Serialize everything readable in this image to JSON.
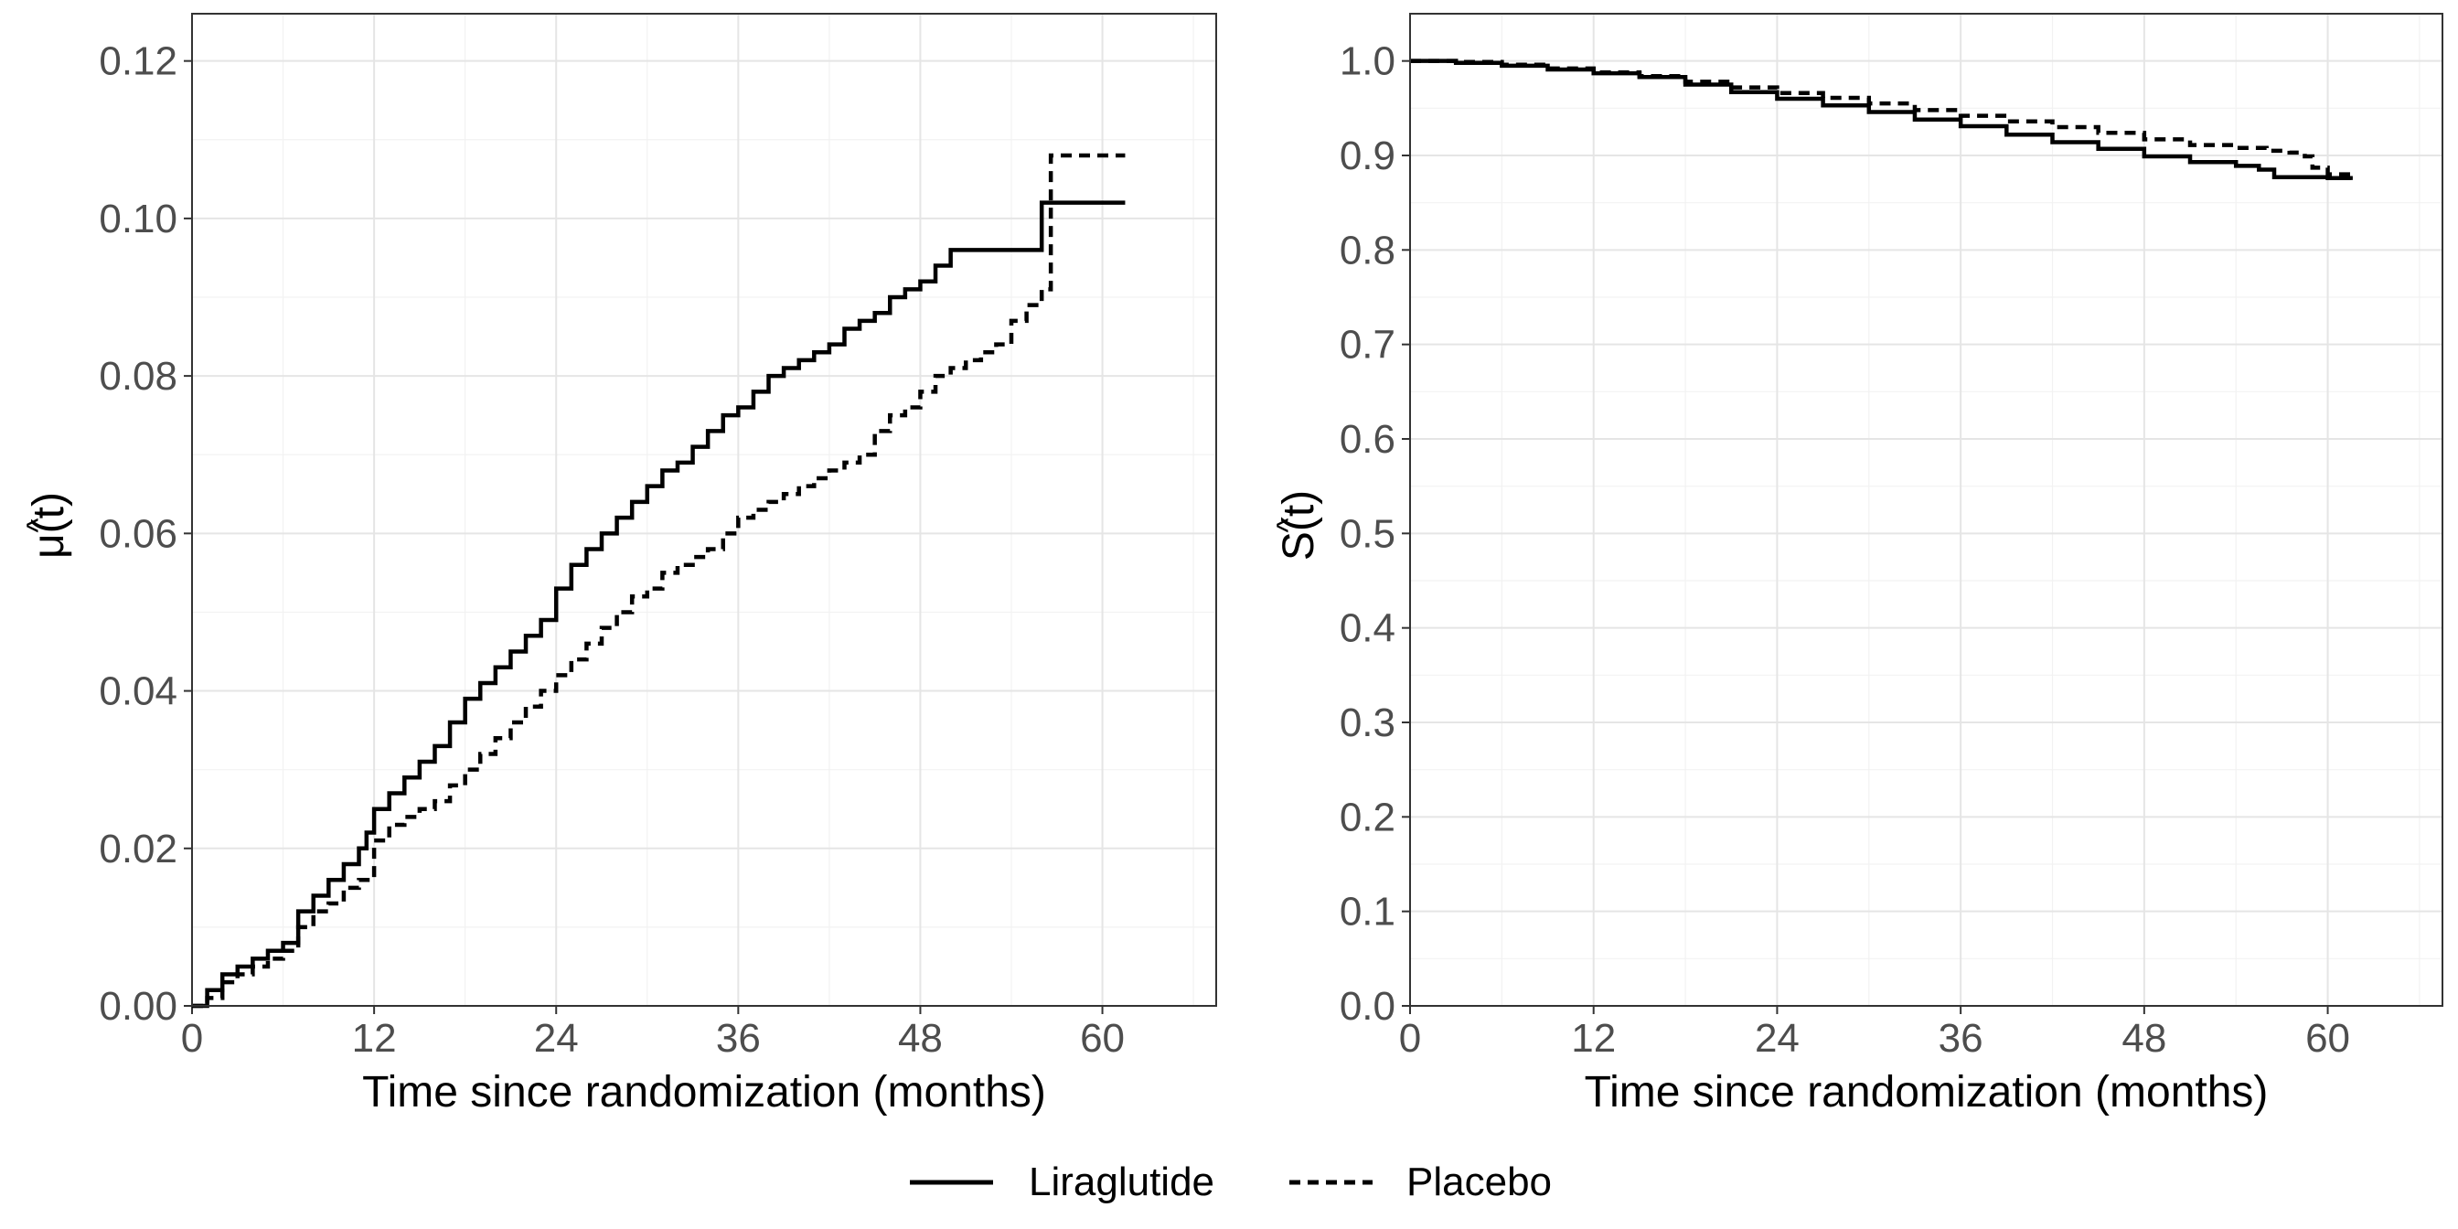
{
  "legend": {
    "position": "bottom",
    "items": [
      {
        "label": "Liraglutide",
        "linetype": "solid"
      },
      {
        "label": "Placebo",
        "linetype": "dashed"
      }
    ]
  },
  "chart_data": [
    {
      "type": "line",
      "step": true,
      "ylabel_main": "μ(t)",
      "ylabel_hat": "^",
      "xlabel": "Time since randomization (months)",
      "xlim": [
        0,
        67.5
      ],
      "ylim": [
        0,
        0.126
      ],
      "xticks": [
        0,
        12,
        24,
        36,
        48,
        60
      ],
      "xtick_labels": [
        "0",
        "12",
        "24",
        "36",
        "48",
        "60"
      ],
      "yticks": [
        0,
        0.02,
        0.04,
        0.06,
        0.08,
        0.1,
        0.12
      ],
      "ytick_labels": [
        "0.00",
        "0.02",
        "0.04",
        "0.06",
        "0.08",
        "0.10",
        "0.12"
      ],
      "grid": true,
      "series": [
        {
          "name": "Liraglutide",
          "linetype": "solid",
          "x": [
            0,
            1,
            2,
            3,
            4,
            5,
            6,
            7,
            8,
            9,
            10,
            11,
            11.5,
            12,
            13,
            14,
            15,
            16,
            17,
            18,
            19,
            20,
            21,
            22,
            23,
            24,
            25,
            26,
            27,
            28,
            29,
            30,
            31,
            32,
            33,
            34,
            35,
            36,
            37,
            38,
            39,
            40,
            41,
            42,
            43,
            44,
            45,
            46,
            47,
            48,
            49,
            50,
            51,
            52,
            53,
            54,
            55,
            56,
            57,
            58,
            59,
            60,
            61.5
          ],
          "y": [
            0,
            0.002,
            0.004,
            0.005,
            0.006,
            0.007,
            0.008,
            0.012,
            0.014,
            0.016,
            0.018,
            0.02,
            0.022,
            0.025,
            0.027,
            0.029,
            0.031,
            0.033,
            0.036,
            0.039,
            0.041,
            0.043,
            0.045,
            0.047,
            0.049,
            0.053,
            0.056,
            0.058,
            0.06,
            0.062,
            0.064,
            0.066,
            0.068,
            0.069,
            0.071,
            0.073,
            0.075,
            0.076,
            0.078,
            0.08,
            0.081,
            0.082,
            0.083,
            0.084,
            0.086,
            0.087,
            0.088,
            0.09,
            0.091,
            0.092,
            0.094,
            0.096,
            0.096,
            0.096,
            0.096,
            0.096,
            0.096,
            0.102,
            0.102,
            0.102,
            0.102,
            0.102,
            0.102
          ]
        },
        {
          "name": "Placebo",
          "linetype": "dashed",
          "x": [
            0,
            1,
            2,
            3,
            4,
            5,
            6,
            7,
            8,
            9,
            10,
            11,
            12,
            13,
            14,
            15,
            16,
            17,
            18,
            19,
            20,
            21,
            22,
            23,
            24,
            25,
            26,
            27,
            28,
            29,
            30,
            31,
            32,
            33,
            34,
            35,
            36,
            37,
            38,
            39,
            40,
            41,
            42,
            43,
            44,
            45,
            46,
            47,
            48,
            49,
            50,
            51,
            52,
            53,
            54,
            55,
            56,
            56.6,
            58,
            60,
            61.5
          ],
          "y": [
            0,
            0.001,
            0.003,
            0.004,
            0.005,
            0.006,
            0.007,
            0.01,
            0.012,
            0.013,
            0.015,
            0.016,
            0.021,
            0.023,
            0.024,
            0.025,
            0.026,
            0.028,
            0.03,
            0.032,
            0.034,
            0.036,
            0.038,
            0.04,
            0.042,
            0.044,
            0.046,
            0.048,
            0.05,
            0.052,
            0.053,
            0.055,
            0.056,
            0.057,
            0.058,
            0.06,
            0.062,
            0.063,
            0.064,
            0.065,
            0.066,
            0.067,
            0.068,
            0.069,
            0.07,
            0.073,
            0.075,
            0.076,
            0.078,
            0.08,
            0.081,
            0.082,
            0.083,
            0.084,
            0.087,
            0.089,
            0.091,
            0.108,
            0.108,
            0.108,
            0.108
          ]
        }
      ]
    },
    {
      "type": "line",
      "step": true,
      "ylabel_main": "S(t)",
      "ylabel_hat": "^",
      "xlabel": "Time since randomization (months)",
      "xlim": [
        0,
        67.5
      ],
      "ylim": [
        0,
        1.05
      ],
      "xticks": [
        0,
        12,
        24,
        36,
        48,
        60
      ],
      "xtick_labels": [
        "0",
        "12",
        "24",
        "36",
        "48",
        "60"
      ],
      "yticks": [
        0,
        0.1,
        0.2,
        0.3,
        0.4,
        0.5,
        0.6,
        0.7,
        0.8,
        0.9,
        1.0
      ],
      "ytick_labels": [
        "0.0",
        "0.1",
        "0.2",
        "0.3",
        "0.4",
        "0.5",
        "0.6",
        "0.7",
        "0.8",
        "0.9",
        "1.0"
      ],
      "grid": true,
      "series": [
        {
          "name": "Liraglutide",
          "linetype": "solid",
          "x": [
            0,
            3,
            6,
            9,
            12,
            15,
            18,
            21,
            24,
            27,
            30,
            33,
            36,
            39,
            42,
            45,
            48,
            51,
            54,
            55.5,
            56.5,
            58,
            60,
            61.5
          ],
          "y": [
            1.0,
            0.998,
            0.995,
            0.991,
            0.987,
            0.983,
            0.975,
            0.967,
            0.96,
            0.953,
            0.946,
            0.938,
            0.931,
            0.922,
            0.914,
            0.907,
            0.899,
            0.893,
            0.889,
            0.885,
            0.877,
            0.877,
            0.876,
            0.874
          ]
        },
        {
          "name": "Placebo",
          "linetype": "dashed",
          "x": [
            0,
            3,
            6,
            9,
            12,
            15,
            18,
            21,
            24,
            27,
            30,
            33,
            36,
            39,
            42,
            45,
            48,
            51,
            54,
            56,
            57.5,
            58.5,
            59,
            60,
            61.5
          ],
          "y": [
            1.0,
            0.999,
            0.996,
            0.992,
            0.988,
            0.984,
            0.978,
            0.972,
            0.966,
            0.961,
            0.955,
            0.948,
            0.942,
            0.936,
            0.93,
            0.924,
            0.917,
            0.911,
            0.908,
            0.905,
            0.903,
            0.899,
            0.887,
            0.88,
            0.873
          ]
        }
      ]
    }
  ]
}
